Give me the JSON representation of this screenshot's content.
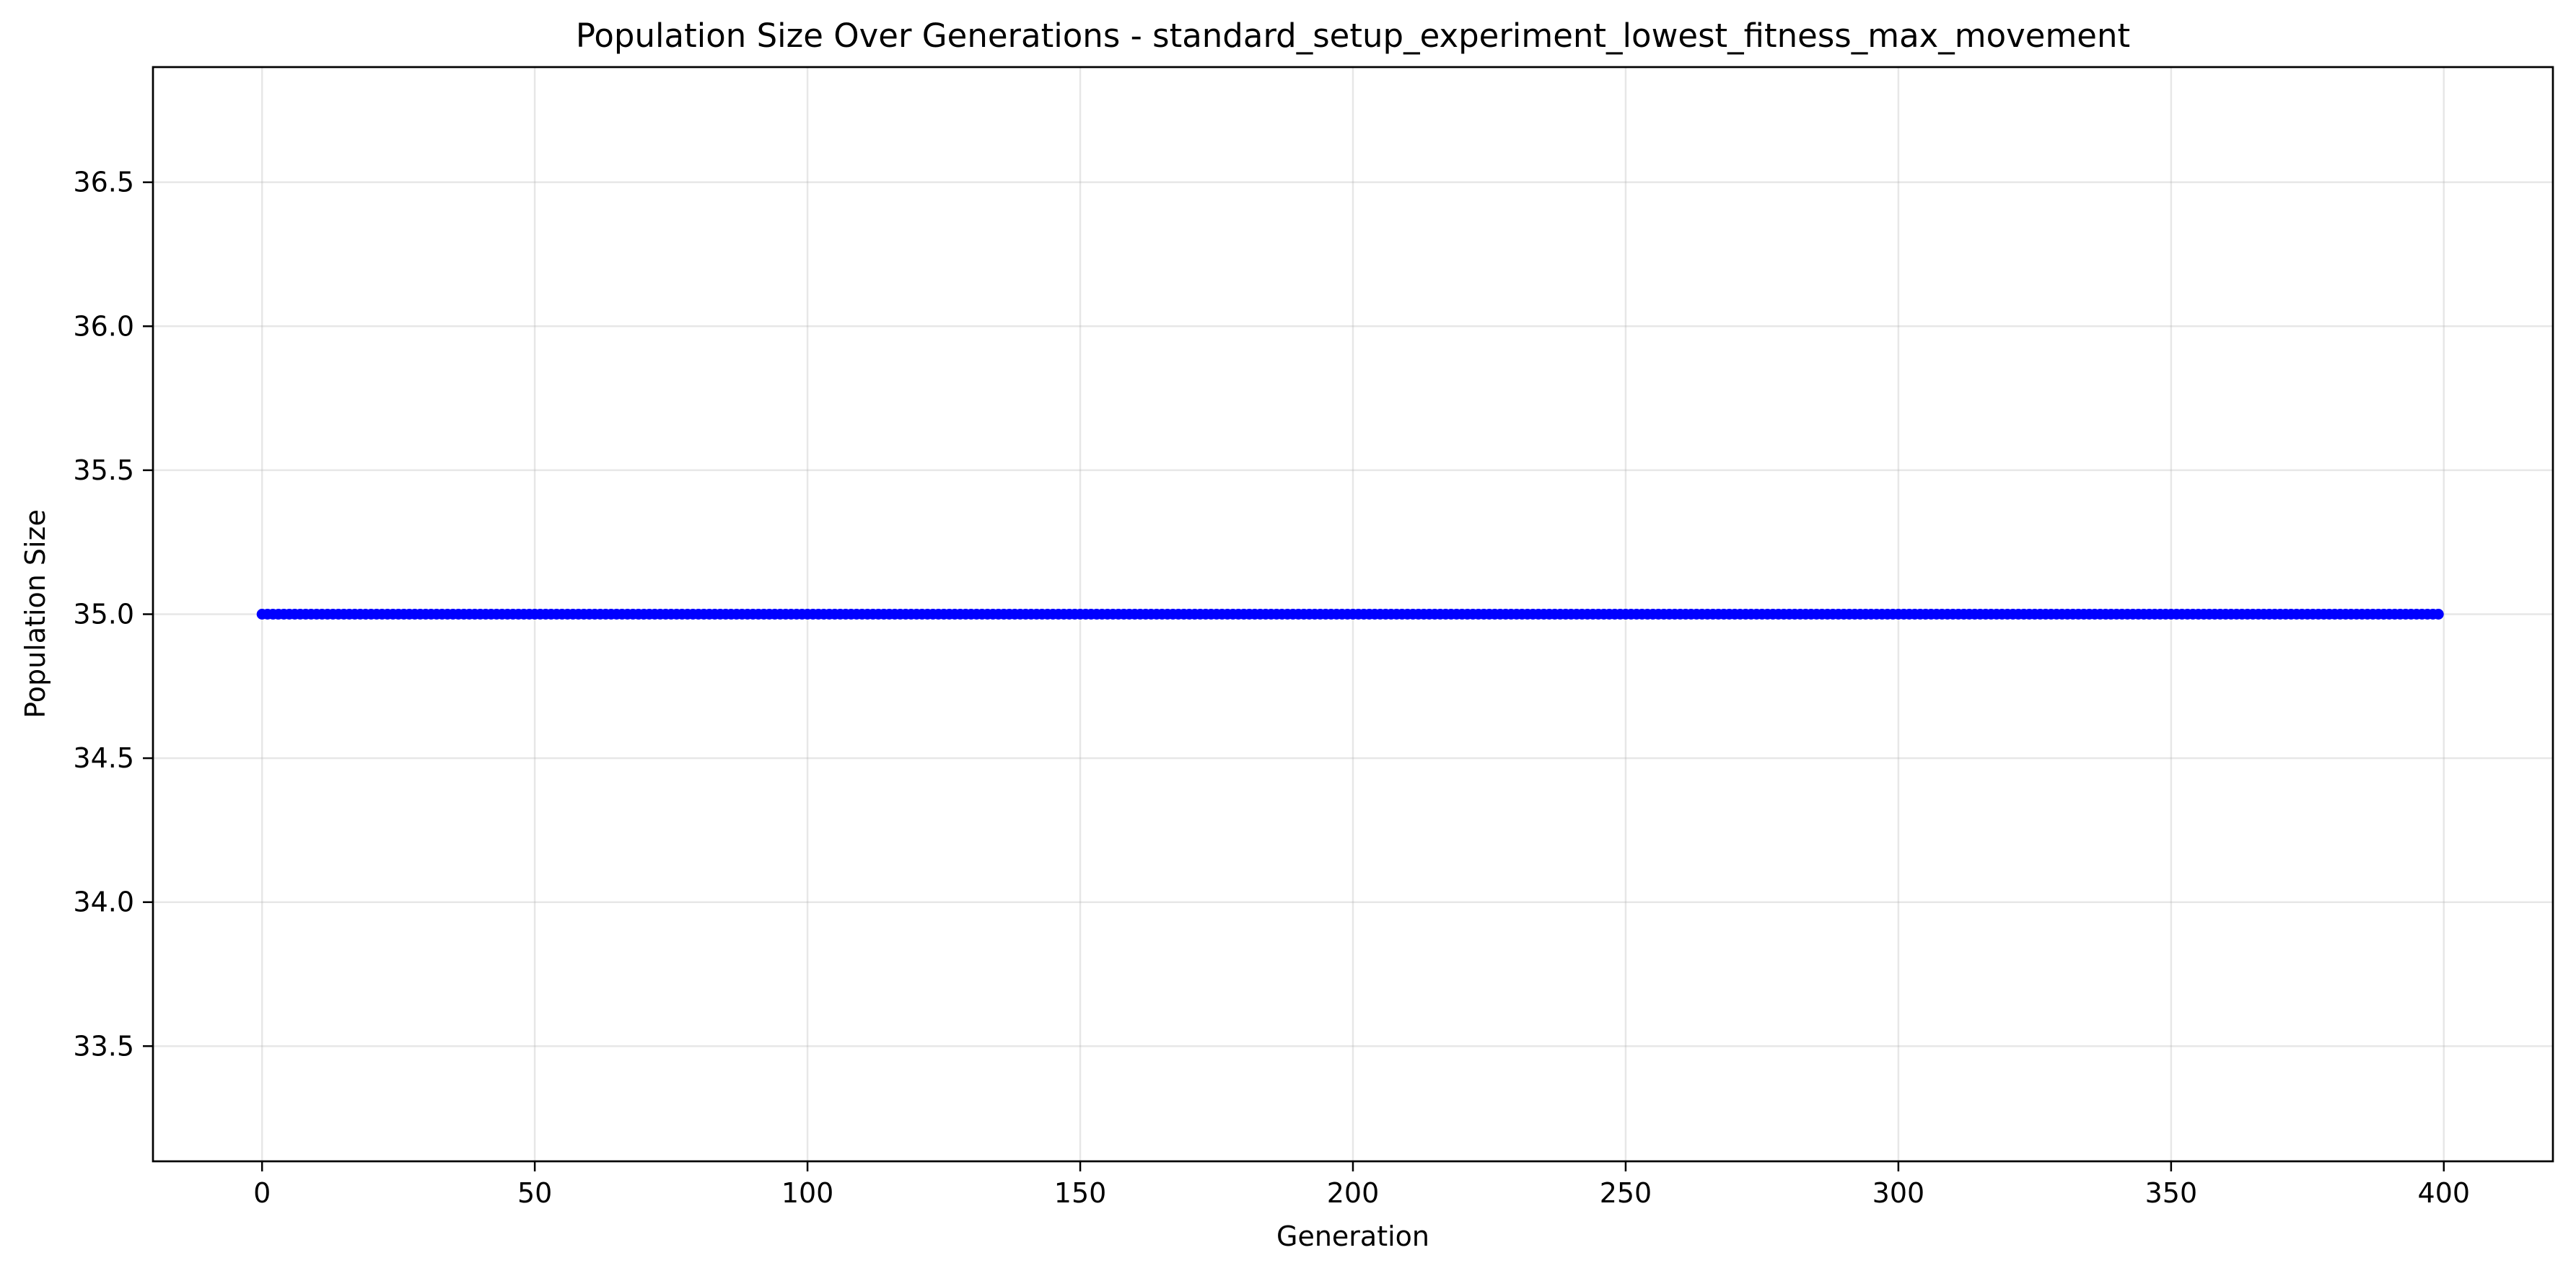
{
  "chart_data": {
    "type": "line",
    "title": "Population Size Over Generations - standard_setup_experiment_lowest_fitness_max_movement",
    "xlabel": "Generation",
    "ylabel": "Population Size",
    "x_range": [
      0,
      399
    ],
    "x_step": 1,
    "y_constant": 35.0,
    "xlim": [
      -20,
      420
    ],
    "ylim": [
      33.1,
      36.9
    ],
    "xticks": [
      0,
      50,
      100,
      150,
      200,
      250,
      300,
      350,
      400
    ],
    "yticks": [
      33.5,
      34.0,
      34.5,
      35.0,
      35.5,
      36.0,
      36.5
    ],
    "xtick_labels": [
      "0",
      "50",
      "100",
      "150",
      "200",
      "250",
      "300",
      "350",
      "400"
    ],
    "ytick_labels": [
      "33.5",
      "34.0",
      "34.5",
      "35.0",
      "35.5",
      "36.0",
      "36.5"
    ],
    "grid": true,
    "legend": "none",
    "series_color": "#0000ff",
    "marker": "circle"
  }
}
